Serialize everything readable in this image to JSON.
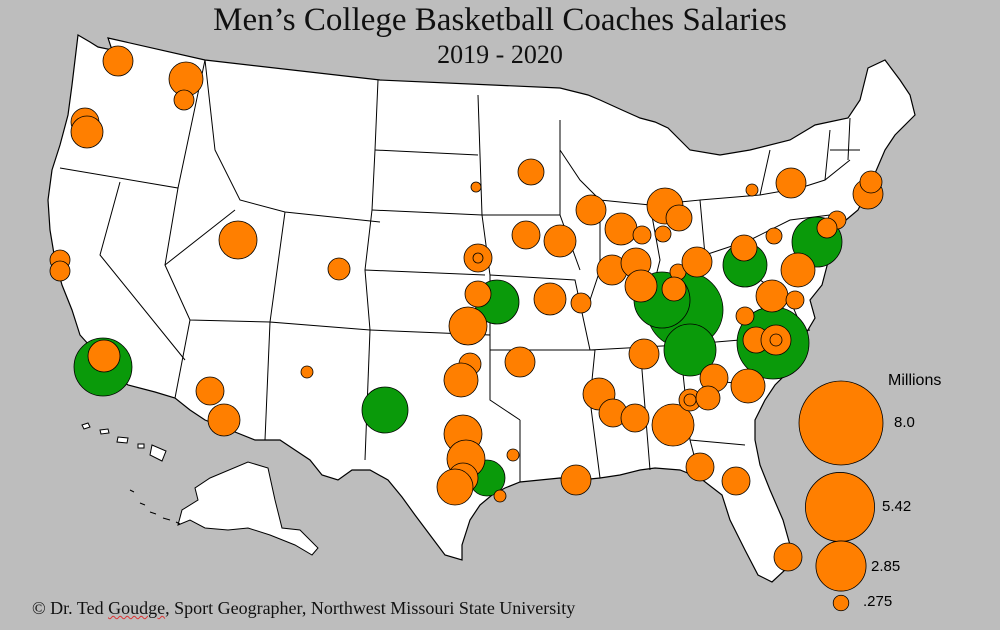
{
  "title": "Men’s College Basketball Coaches Salaries",
  "subtitle": "2019 - 2020",
  "credit": {
    "prefix": "© Dr. Ted ",
    "name": "Goudge",
    "suffix": ", Sport Geographer, Northwest Missouri State University"
  },
  "legend": {
    "title": "Millions",
    "items": [
      {
        "label": "8.0",
        "value": 8.0
      },
      {
        "label": "5.42",
        "value": 5.42
      },
      {
        "label": "2.85",
        "value": 2.85
      },
      {
        "label": ".275",
        "value": 0.275
      }
    ]
  },
  "colors": {
    "background": "#bdbdbd",
    "land": "#ffffff",
    "orange": "#ff7f00",
    "green": "#0a9a0a",
    "stroke": "#000000"
  }
}
